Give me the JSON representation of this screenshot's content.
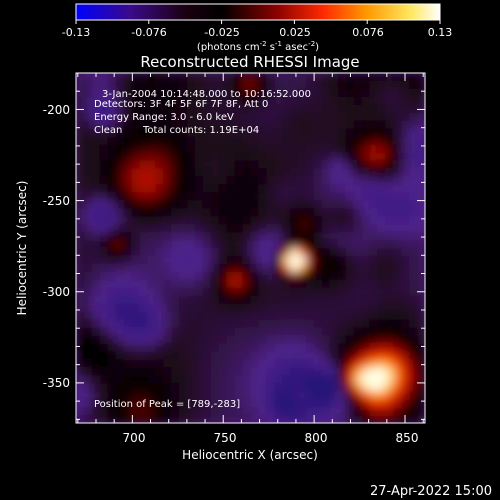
{
  "colorbar": {
    "ticks": [
      "-0.13",
      "-0.076",
      "-0.025",
      "0.025",
      "0.076",
      "0.13"
    ],
    "unit_text": "(photons cm",
    "unit_exp1": "-2",
    "unit_mid": " s",
    "unit_exp2": "-1",
    "unit_tail": " asec",
    "unit_exp3": "-2",
    "unit_close": ")",
    "range": [
      -0.13,
      0.13
    ],
    "colors": [
      "#0000ff",
      "#3a0a8a",
      "#1a0010",
      "#000000",
      "#8a0000",
      "#ff2a00",
      "#ff9a00",
      "#ffe860",
      "#ffffff"
    ]
  },
  "chart_data": {
    "type": "heatmap",
    "title": "Reconstructed RHESSI Image",
    "xlabel": "Heliocentric X (arcsec)",
    "ylabel": "Heliocentric Y (arcsec)",
    "xticks": [
      "700",
      "750",
      "800",
      "850"
    ],
    "yticks": [
      "-200",
      "-250",
      "-300",
      "-350"
    ],
    "x_tick_values": [
      700,
      750,
      800,
      850
    ],
    "y_tick_values": [
      -200,
      -250,
      -300,
      -350
    ],
    "xlim": [
      669,
      861
    ],
    "ylim": [
      -372,
      -180
    ],
    "peak_position": [
      789,
      -283
    ],
    "annotations": {
      "time_range": "3-Jan-2004 10:14:48.000 to 10:16:52.000",
      "detectors": "Detectors: 3F 4F 5F 6F 7F 8F, Att 0",
      "energy": "Energy Range: 3.0 - 6.0 keV",
      "clean_label": "Clean",
      "total_counts": "Total counts: 1.19E+04",
      "peak": "Position of Peak = [789,-283]"
    }
  },
  "footer": {
    "date": "27-Apr-2022 15:00"
  }
}
